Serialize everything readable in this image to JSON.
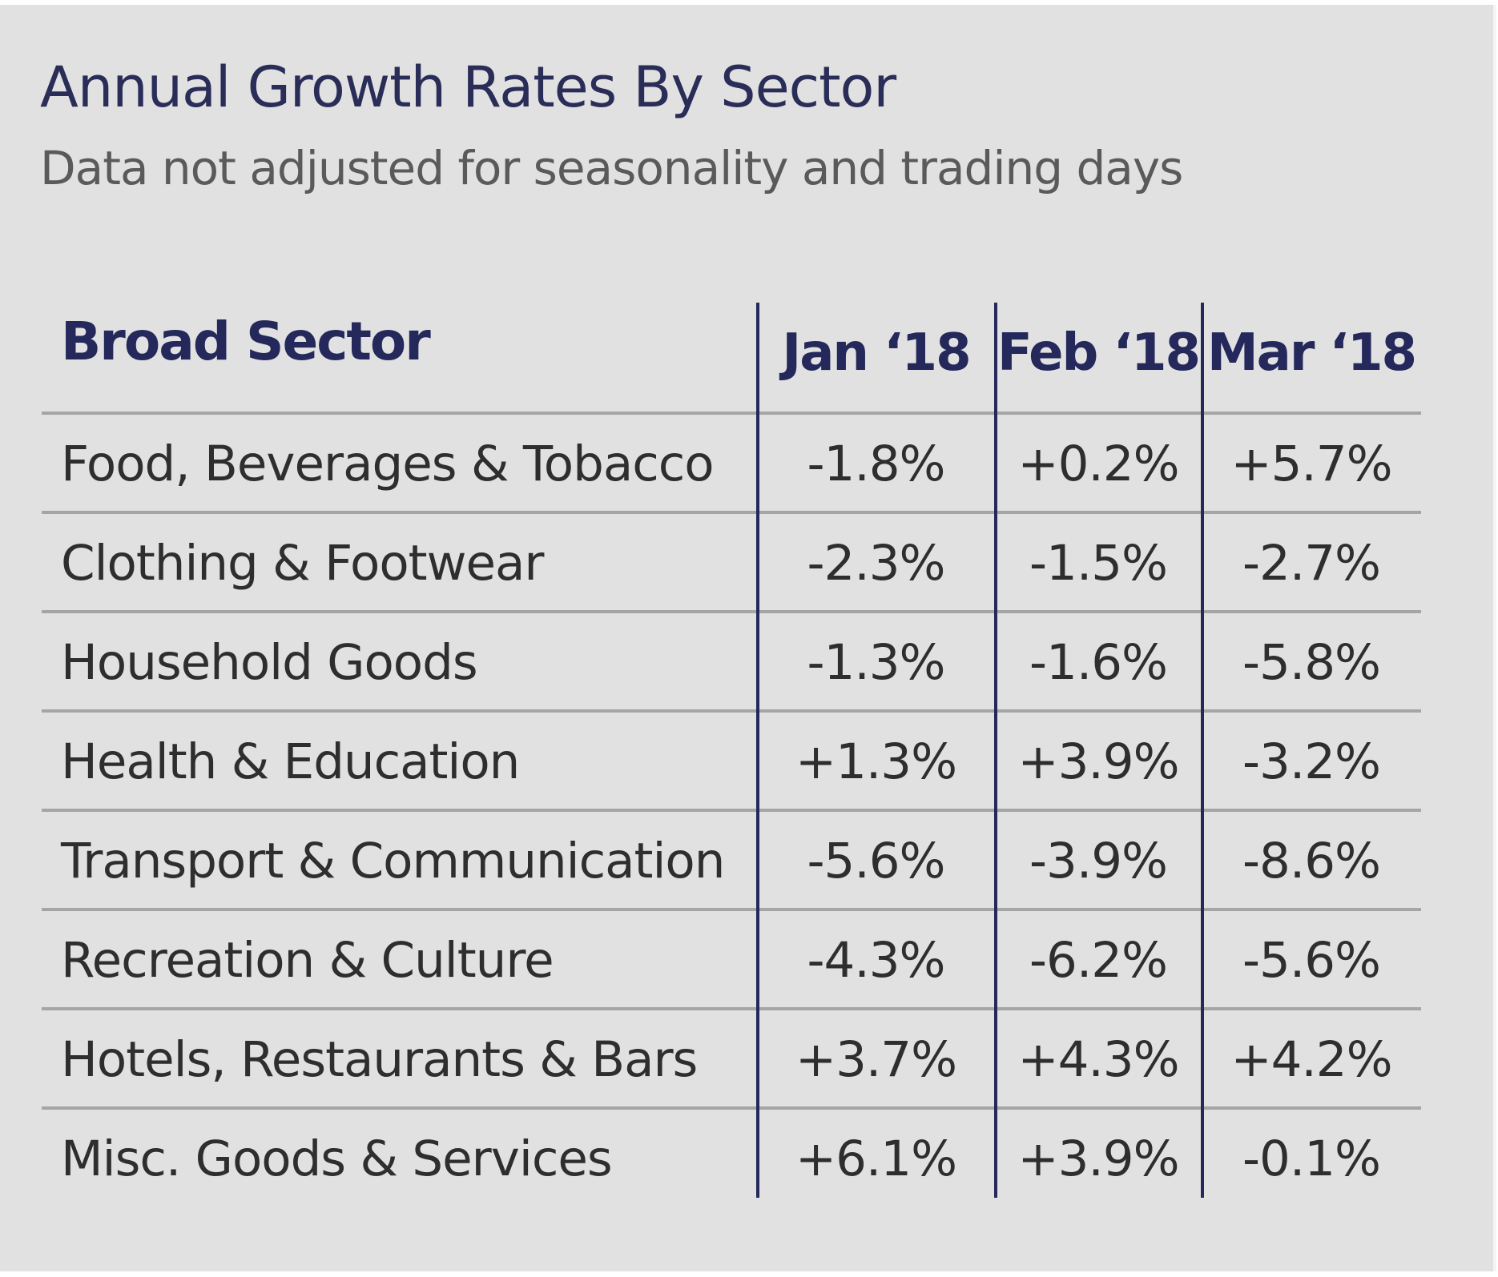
{
  "chart_data": {
    "type": "table",
    "title": "Annual Growth Rates By Sector",
    "subtitle": "Data not adjusted for seasonality and trading days",
    "columns": [
      "Broad Sector",
      "Jan ‘18",
      "Feb ‘18",
      "Mar ‘18"
    ],
    "rows": [
      [
        "Food, Beverages & Tobacco",
        "-1.8%",
        "+0.2%",
        "+5.7%"
      ],
      [
        "Clothing & Footwear",
        "-2.3%",
        "-1.5%",
        "-2.7%"
      ],
      [
        "Household Goods",
        "-1.3%",
        "-1.6%",
        "-5.8%"
      ],
      [
        "Health & Education",
        "+1.3%",
        "+3.9%",
        "-3.2%"
      ],
      [
        "Transport & Communication",
        "-5.6%",
        "-3.9%",
        "-8.6%"
      ],
      [
        "Recreation & Culture",
        "-4.3%",
        "-6.2%",
        "-5.6%"
      ],
      [
        "Hotels, Restaurants & Bars",
        "+3.7%",
        "+4.3%",
        "+4.2%"
      ],
      [
        "Misc. Goods & Services",
        "+6.1%",
        "+3.9%",
        "-0.1%"
      ]
    ],
    "colors": {
      "background": "#e1e1e1",
      "title": "#2a2d58",
      "header": "#24285a",
      "divider": "#24285a",
      "row_rule": "#a5a5a5",
      "text": "#2e2e2e"
    }
  }
}
